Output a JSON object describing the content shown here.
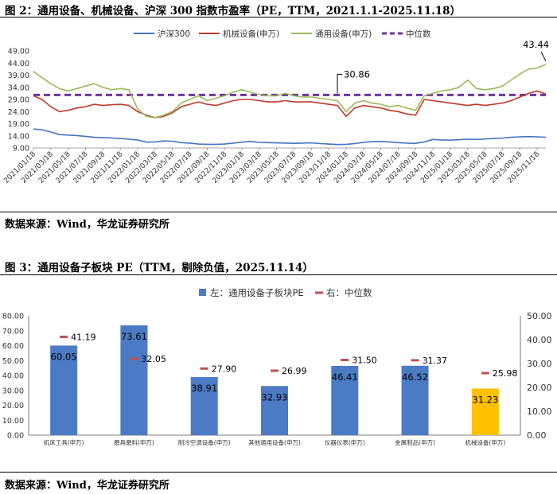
{
  "figure2": {
    "title": "图 2：通用设备、机械设备、沪深 300 指数市盈率（PE，TTM，2021.1.1-2025.11.18）",
    "source": "数据来源：Wind，华龙证券研究所"
  },
  "figure3": {
    "title": "图 3：通用设备子板块 PE（TTM，剔除负值，2025.11.14）",
    "source": "数据来源：Wind，华龙证券研究所"
  },
  "colors": {
    "hs300": "#4472c4",
    "machinery": "#c0392b",
    "general_equipment": "#9bbb59",
    "median": "#7030a0",
    "bar": "#4a7bc4",
    "bar_highlight": "#ffc000",
    "median_marker": "#c0504d"
  },
  "chart_data": [
    {
      "type": "line",
      "title": "",
      "legend_position": "top-center",
      "grid": false,
      "ylim": [
        9,
        49
      ],
      "yticks": [
        "49.00",
        "44.00",
        "39.00",
        "34.00",
        "29.00",
        "24.00",
        "19.00",
        "14.00",
        "9.00"
      ],
      "x_labels": [
        "2021/01/18",
        "2021/03/18",
        "2021/05/18",
        "2021/07/18",
        "2021/09/18",
        "2021/11/18",
        "2022/01/18",
        "2022/03/18",
        "2022/05/18",
        "2022/07/18",
        "2022/09/18",
        "2022/11/18",
        "2023/01/18",
        "2023/03/18",
        "2023/05/18",
        "2023/07/18",
        "2023/09/18",
        "2023/11/18",
        "2024/01/18",
        "2024/03/18",
        "2024/05/18",
        "2024/07/18",
        "2024/09/18",
        "2024/11/18",
        "2025/01/18",
        "2025/03/18",
        "2025/05/18",
        "2025/07/18",
        "2025/09/18",
        "2025/11/18"
      ],
      "x_tick_indices": [
        0,
        2,
        4,
        6,
        8,
        10,
        12,
        14,
        16,
        18,
        20,
        22,
        24,
        26,
        28,
        30,
        32,
        34,
        36,
        38,
        40,
        42,
        44,
        46,
        48,
        50,
        52,
        54,
        56,
        58
      ],
      "series": [
        {
          "name": "沪深300",
          "color_key": "hs300",
          "values": [
            16.8,
            16.5,
            15.6,
            14.5,
            14.3,
            14.1,
            13.8,
            13.4,
            13.3,
            13.1,
            12.9,
            12.6,
            12.3,
            11.4,
            11.5,
            11.9,
            11.8,
            11.2,
            11.0,
            10.6,
            10.5,
            10.5,
            10.6,
            11.0,
            11.4,
            11.7,
            11.3,
            11.2,
            11.1,
            11.0,
            10.9,
            11.0,
            11.1,
            10.8,
            10.6,
            10.4,
            10.5,
            10.8,
            11.3,
            11.6,
            11.7,
            11.5,
            11.2,
            11.0,
            10.9,
            11.5,
            12.5,
            12.3,
            12.2,
            12.4,
            12.6,
            12.5,
            12.7,
            12.9,
            13.1,
            13.4,
            13.6,
            13.7,
            13.6,
            13.4
          ]
        },
        {
          "name": "机械设备(申万)",
          "color_key": "machinery",
          "values": [
            30.5,
            29.0,
            26.0,
            24.0,
            24.5,
            25.5,
            26.0,
            27.0,
            26.5,
            26.8,
            27.0,
            26.5,
            24.0,
            22.5,
            21.5,
            22.0,
            23.5,
            26.0,
            27.0,
            28.0,
            27.0,
            26.5,
            27.5,
            28.5,
            29.0,
            29.0,
            28.5,
            28.0,
            28.0,
            28.5,
            28.0,
            28.0,
            28.0,
            27.5,
            27.0,
            26.5,
            22.0,
            25.5,
            26.5,
            26.0,
            25.5,
            24.5,
            24.0,
            23.0,
            22.5,
            29.0,
            28.5,
            28.0,
            27.5,
            27.0,
            26.5,
            27.0,
            26.5,
            27.0,
            27.5,
            28.5,
            30.0,
            31.5,
            32.5,
            31.2
          ]
        },
        {
          "name": "通用设备(申万)",
          "color_key": "general_equipment",
          "values": [
            40.5,
            38.0,
            35.5,
            33.5,
            32.5,
            33.5,
            34.5,
            35.5,
            34.0,
            33.0,
            33.5,
            33.0,
            25.0,
            22.0,
            21.5,
            22.5,
            24.0,
            27.5,
            29.0,
            30.5,
            28.5,
            29.5,
            30.5,
            32.0,
            33.0,
            32.0,
            31.0,
            30.5,
            30.5,
            31.5,
            30.5,
            30.0,
            30.0,
            29.5,
            29.0,
            28.5,
            24.0,
            27.5,
            28.5,
            27.5,
            27.0,
            26.0,
            26.5,
            25.5,
            24.5,
            30.5,
            31.5,
            32.5,
            33.0,
            34.0,
            37.0,
            33.5,
            33.0,
            33.5,
            34.5,
            37.0,
            39.5,
            41.5,
            42.0,
            43.44
          ]
        },
        {
          "name": "中位数",
          "color_key": "median",
          "dashed": true,
          "constant": 30.86
        }
      ],
      "annotations": [
        {
          "text": "30.86",
          "series": "中位数",
          "at_index": 35
        },
        {
          "text": "43.44",
          "series": "通用设备(申万)",
          "at_index": 59
        }
      ]
    },
    {
      "type": "bar",
      "title": "",
      "legend_position": "top-center",
      "grid": false,
      "categories": [
        "机床工具(申万)",
        "磨具磨料(申万)",
        "制冷空调设备(申万)",
        "其他通用设备(申万)",
        "仪器仪表(申万)",
        "金属制品(申万)",
        "机械设备(申万)"
      ],
      "series": [
        {
          "name": "左：通用设备子板块PE",
          "axis": "left",
          "values": [
            60.05,
            73.61,
            38.91,
            32.93,
            46.41,
            46.52,
            31.23
          ],
          "labels": [
            "60.05",
            "73.61",
            "38.91",
            "32.93",
            "46.41",
            "46.52",
            "31.23"
          ],
          "highlight_index": 6
        },
        {
          "name": "右：中位数",
          "axis": "right",
          "type": "marker",
          "values": [
            41.19,
            32.05,
            27.9,
            26.99,
            31.5,
            31.37,
            25.98
          ],
          "labels": [
            "41.19",
            "32.05",
            "27.90",
            "26.99",
            "31.50",
            "31.37",
            "25.98"
          ]
        }
      ],
      "ylim_left": [
        0,
        80
      ],
      "yticks_left": [
        "0.00",
        "10.00",
        "20.00",
        "30.00",
        "40.00",
        "50.00",
        "60.00",
        "70.00",
        "80.00"
      ],
      "ylim_right": [
        0,
        50
      ],
      "yticks_right": [
        "0.00",
        "10.00",
        "20.00",
        "30.00",
        "40.00",
        "50.00"
      ]
    }
  ]
}
